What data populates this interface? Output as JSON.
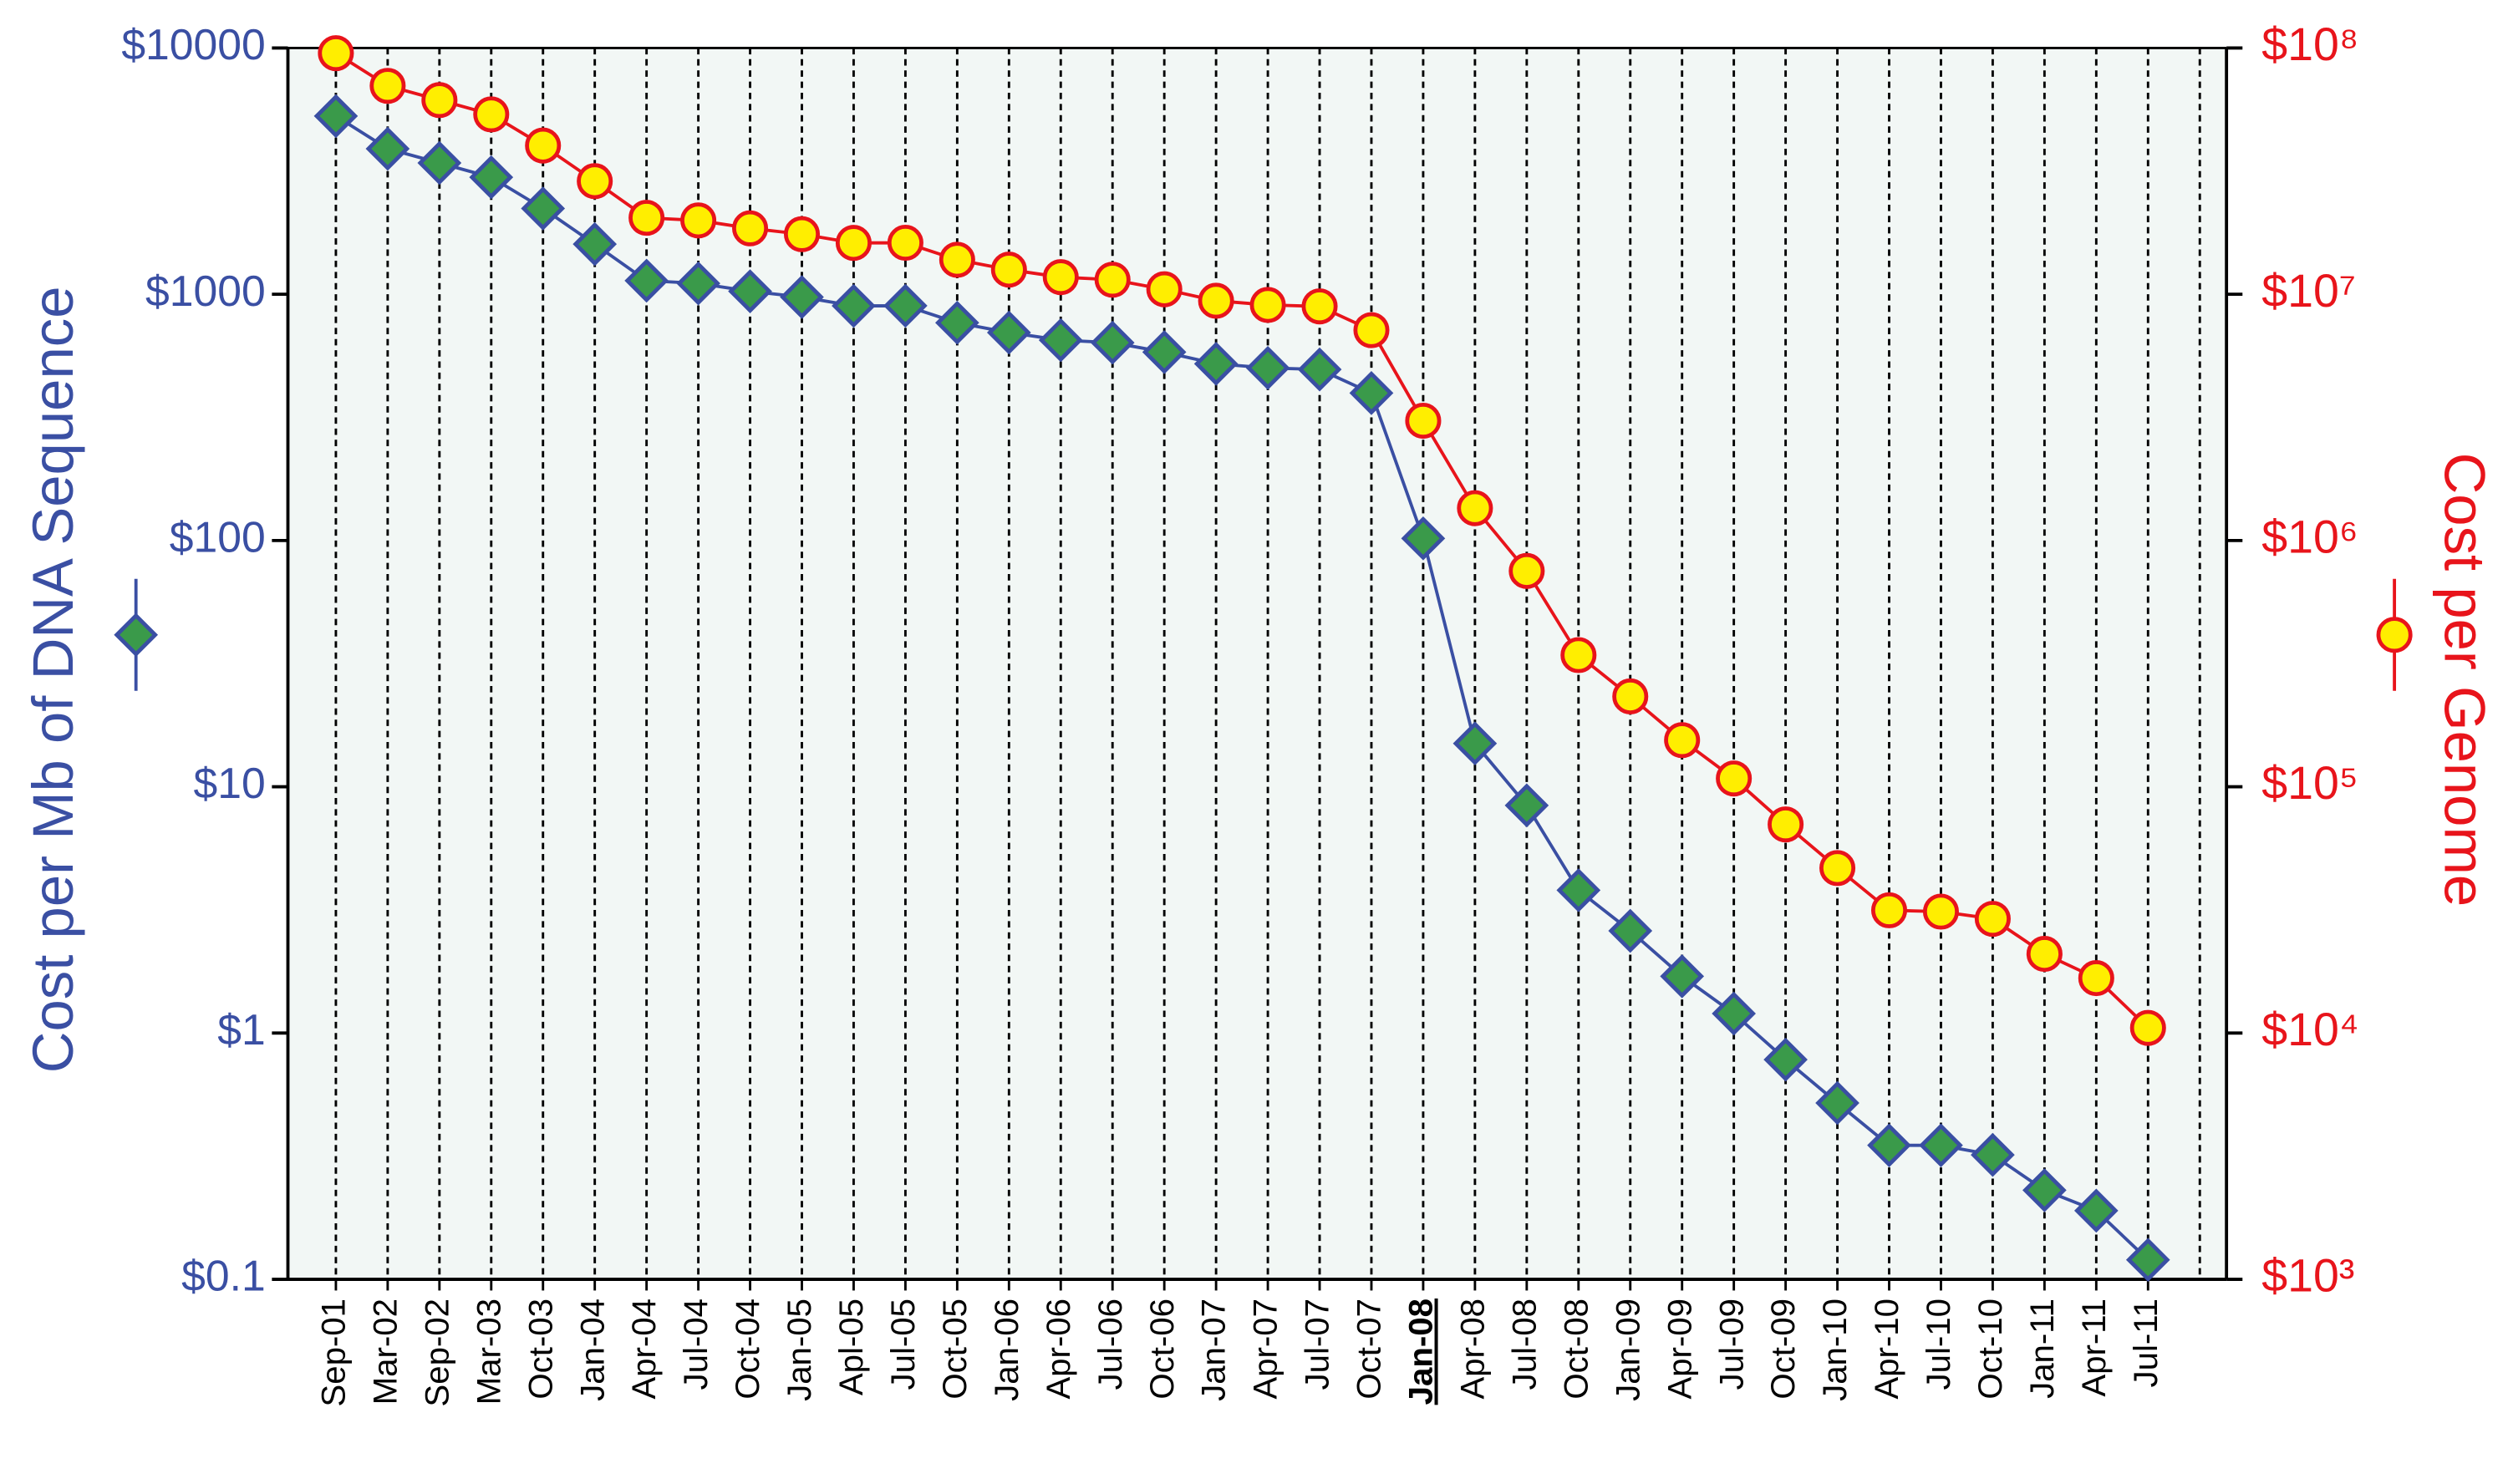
{
  "chart_data": {
    "type": "line",
    "log_scale": true,
    "y_title": "Cost per Mb of DNA Sequence",
    "y2_title": "Cost per Genome",
    "highlight_category": "Jan-08",
    "categories": [
      "Sep-01",
      "Mar-02",
      "Sep-02",
      "Mar-03",
      "Oct-03",
      "Jan-04",
      "Apr-04",
      "Jul-04",
      "Oct-04",
      "Jan-05",
      "Apl-05",
      "Jul-05",
      "Oct-05",
      "Jan-06",
      "Apr-06",
      "Jul-06",
      "Oct-06",
      "Jan-07",
      "Apr-07",
      "Jul-07",
      "Oct-07",
      "Jan-08",
      "Apr-08",
      "Jul-08",
      "Oct-08",
      "Jan-09",
      "Apr-09",
      "Jul-09",
      "Oct-09",
      "Jan-10",
      "Apr-10",
      "Jul-10",
      "Oct-10",
      "Jan-11",
      "Apr-11",
      "Jul-11"
    ],
    "series": [
      {
        "name": "Cost per Mb of DNA Sequence",
        "color": "#3a4fa3",
        "marker": "diamond",
        "marker_color": "#3a9a4a",
        "values": [
          5292,
          3899,
          3413,
          2986,
          2230,
          1598,
          1135,
          1107,
          1028,
          974,
          897,
          898,
          766,
          699,
          651,
          636,
          582,
          522,
          502,
          495,
          397,
          102,
          15,
          8.4,
          3.8,
          2.6,
          1.7,
          1.2,
          0.78,
          0.52,
          0.35,
          0.35,
          0.32,
          0.23,
          0.19,
          0.12
        ]
      },
      {
        "name": "Cost per Genome",
        "color": "#e8141b",
        "marker": "circle",
        "marker_color": "#ffee00",
        "axis": "y2",
        "values": [
          95263072,
          70175437,
          61448422,
          53751684,
          40157554,
          28780376,
          20442576,
          19934346,
          18519312,
          17534970,
          16159699,
          16180224,
          13801124,
          12585659,
          11732535,
          11455315,
          10474556,
          9408739,
          9047003,
          8927342,
          7147571,
          3063820,
          1352982,
          752080,
          342502,
          232735,
          154714,
          108065,
          70333,
          46774,
          31512,
          31125,
          29092,
          20963,
          16712,
          10497
        ]
      }
    ],
    "ylim": [
      0.1,
      10000
    ],
    "yticks": [
      {
        "value": 0.1,
        "label": "$0.1"
      },
      {
        "value": 1,
        "label": "$1"
      },
      {
        "value": 10,
        "label": "$10"
      },
      {
        "value": 100,
        "label": "$100"
      },
      {
        "value": 1000,
        "label": "$1000"
      },
      {
        "value": 10000,
        "label": "$10000"
      }
    ],
    "y2lim": [
      1000,
      100000000
    ],
    "y2ticks": [
      {
        "value": 1000,
        "label": "$10³"
      },
      {
        "value": 10000,
        "label": "$10⁴"
      },
      {
        "value": 100000,
        "label": "$10⁵"
      },
      {
        "value": 1000000,
        "label": "$10⁶"
      },
      {
        "value": 10000000,
        "label": "$10⁷"
      },
      {
        "value": 100000000,
        "label": "$10⁸"
      }
    ],
    "y_color": "#3a4fa3",
    "y2_color": "#e8141b",
    "plot_background": "#f2f7f5"
  }
}
